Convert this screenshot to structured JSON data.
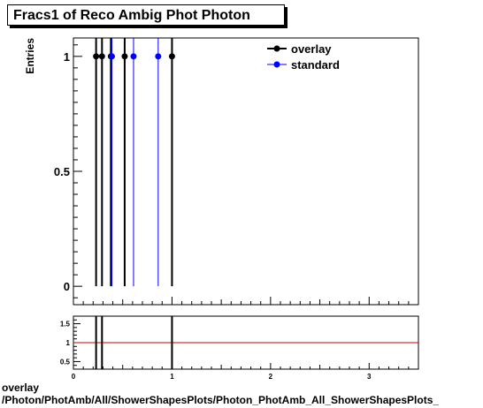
{
  "chart_data": [
    {
      "type": "line",
      "title": "Fracs1 of Reco Ambig Phot Photon",
      "ylabel": "Entries",
      "xlim": [
        0,
        3.5
      ],
      "ylim": [
        -0.08,
        1.08
      ],
      "y_ticks": [
        0,
        0.5,
        1
      ],
      "y_tick_labels": [
        "0",
        "0.5",
        "1"
      ],
      "legend_position": "top-right",
      "series": [
        {
          "name": "overlay",
          "color": "#000000",
          "x": [
            0.23,
            0.29,
            0.38,
            0.52,
            1.0
          ],
          "y": [
            1,
            1,
            1,
            1,
            1
          ]
        },
        {
          "name": "standard",
          "color": "#0000ff",
          "x": [
            0.39,
            0.61,
            0.86
          ],
          "y": [
            1,
            1,
            1
          ]
        }
      ]
    },
    {
      "type": "line",
      "xlim": [
        0,
        3.5
      ],
      "ylim": [
        0.3,
        1.7
      ],
      "y_ticks": [
        0.5,
        1,
        1.5
      ],
      "y_tick_labels": [
        "0.5",
        "1",
        "1.5"
      ],
      "x_ticks": [
        0,
        1,
        2,
        3
      ],
      "x_tick_labels": [
        "0",
        "1",
        "2",
        "3"
      ],
      "reference_line": {
        "y": 1,
        "color": "#cc0000"
      },
      "ratio_spikes_x": [
        0.23,
        0.29,
        1.0
      ]
    }
  ],
  "footer": {
    "line1": "overlay",
    "line2": "/Photon/PhotAmb/All/ShowerShapesPlots/Photon_PhotAmb_All_ShowerShapesPlots_"
  }
}
